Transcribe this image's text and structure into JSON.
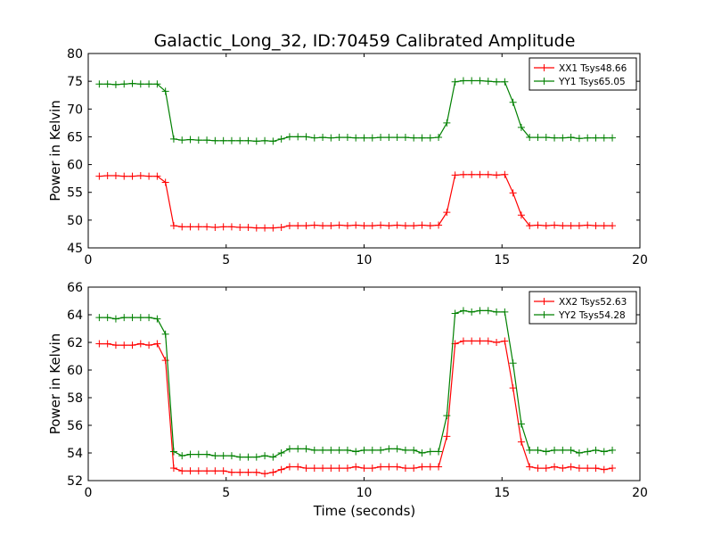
{
  "chart_data": [
    {
      "type": "line",
      "title": "Galactic_Long_32, ID:70459 Calibrated Amplitude",
      "xlabel": "",
      "ylabel": "Power in Kelvin",
      "xlim": [
        0,
        20
      ],
      "ylim": [
        45,
        80
      ],
      "xticks": [
        "0",
        "5",
        "10",
        "15",
        "20"
      ],
      "yticks": [
        "45",
        "50",
        "55",
        "60",
        "65",
        "70",
        "75",
        "80"
      ],
      "legend_position": "top-right",
      "grid": false,
      "x": [
        0.4,
        0.7,
        1.0,
        1.3,
        1.6,
        1.9,
        2.2,
        2.5,
        2.8,
        3.1,
        3.4,
        3.7,
        4.0,
        4.3,
        4.6,
        4.9,
        5.2,
        5.5,
        5.8,
        6.1,
        6.4,
        6.7,
        7.0,
        7.3,
        7.6,
        7.9,
        8.2,
        8.5,
        8.8,
        9.1,
        9.4,
        9.7,
        10.0,
        10.3,
        10.6,
        10.9,
        11.2,
        11.5,
        11.8,
        12.1,
        12.4,
        12.7,
        13.0,
        13.3,
        13.6,
        13.9,
        14.2,
        14.5,
        14.8,
        15.1,
        15.4,
        15.7,
        16.0,
        16.3,
        16.6,
        16.9,
        17.2,
        17.5,
        17.8,
        18.1,
        18.4,
        18.7,
        19.0
      ],
      "series": [
        {
          "name": "XX1 Tsys48.66",
          "color": "#ff0000",
          "values": [
            57.9,
            58.0,
            58.0,
            57.9,
            57.9,
            58.0,
            57.9,
            57.9,
            56.8,
            49.0,
            48.8,
            48.8,
            48.8,
            48.8,
            48.7,
            48.8,
            48.8,
            48.7,
            48.7,
            48.6,
            48.6,
            48.6,
            48.7,
            49.0,
            49.0,
            49.0,
            49.1,
            49.0,
            49.0,
            49.1,
            49.0,
            49.1,
            49.0,
            49.0,
            49.1,
            49.0,
            49.1,
            49.0,
            49.0,
            49.1,
            49.0,
            49.1,
            51.4,
            58.1,
            58.2,
            58.2,
            58.2,
            58.2,
            58.1,
            58.2,
            54.9,
            50.9,
            49.0,
            49.1,
            49.0,
            49.1,
            49.0,
            49.0,
            49.0,
            49.1,
            49.0,
            49.0,
            49.0
          ]
        },
        {
          "name": "YY1 Tsys65.05",
          "color": "#008000",
          "values": [
            74.5,
            74.5,
            74.4,
            74.5,
            74.6,
            74.5,
            74.5,
            74.5,
            73.2,
            64.6,
            64.4,
            64.5,
            64.4,
            64.4,
            64.3,
            64.3,
            64.3,
            64.3,
            64.3,
            64.2,
            64.3,
            64.2,
            64.6,
            65.0,
            65.0,
            65.0,
            64.8,
            64.9,
            64.8,
            64.9,
            64.9,
            64.8,
            64.8,
            64.8,
            64.9,
            64.9,
            64.9,
            64.9,
            64.8,
            64.8,
            64.8,
            64.9,
            67.5,
            74.9,
            75.1,
            75.1,
            75.1,
            75.0,
            74.9,
            74.9,
            71.2,
            66.7,
            64.9,
            64.9,
            64.9,
            64.8,
            64.8,
            64.9,
            64.7,
            64.8,
            64.8,
            64.8,
            64.8
          ]
        }
      ]
    },
    {
      "type": "line",
      "title": "",
      "xlabel": "Time (seconds)",
      "ylabel": "Power in Kelvin",
      "xlim": [
        0,
        20
      ],
      "ylim": [
        52,
        66
      ],
      "xticks": [
        "0",
        "5",
        "10",
        "15",
        "20"
      ],
      "yticks": [
        "52",
        "54",
        "56",
        "58",
        "60",
        "62",
        "64",
        "66"
      ],
      "legend_position": "top-right",
      "grid": false,
      "x": [
        0.4,
        0.7,
        1.0,
        1.3,
        1.6,
        1.9,
        2.2,
        2.5,
        2.8,
        3.1,
        3.4,
        3.7,
        4.0,
        4.3,
        4.6,
        4.9,
        5.2,
        5.5,
        5.8,
        6.1,
        6.4,
        6.7,
        7.0,
        7.3,
        7.6,
        7.9,
        8.2,
        8.5,
        8.8,
        9.1,
        9.4,
        9.7,
        10.0,
        10.3,
        10.6,
        10.9,
        11.2,
        11.5,
        11.8,
        12.1,
        12.4,
        12.7,
        13.0,
        13.3,
        13.6,
        13.9,
        14.2,
        14.5,
        14.8,
        15.1,
        15.4,
        15.7,
        16.0,
        16.3,
        16.6,
        16.9,
        17.2,
        17.5,
        17.8,
        18.1,
        18.4,
        18.7,
        19.0
      ],
      "series": [
        {
          "name": "XX2 Tsys52.63",
          "color": "#ff0000",
          "values": [
            61.9,
            61.9,
            61.8,
            61.8,
            61.8,
            61.9,
            61.8,
            61.9,
            60.7,
            52.9,
            52.7,
            52.7,
            52.7,
            52.7,
            52.7,
            52.7,
            52.6,
            52.6,
            52.6,
            52.6,
            52.5,
            52.6,
            52.8,
            53.0,
            53.0,
            52.9,
            52.9,
            52.9,
            52.9,
            52.9,
            52.9,
            53.0,
            52.9,
            52.9,
            53.0,
            53.0,
            53.0,
            52.9,
            52.9,
            53.0,
            53.0,
            53.0,
            55.2,
            61.9,
            62.1,
            62.1,
            62.1,
            62.1,
            62.0,
            62.1,
            58.7,
            54.8,
            53.0,
            52.9,
            52.9,
            53.0,
            52.9,
            53.0,
            52.9,
            52.9,
            52.9,
            52.8,
            52.9
          ]
        },
        {
          "name": "YY2 Tsys54.28",
          "color": "#008000",
          "values": [
            63.8,
            63.8,
            63.7,
            63.8,
            63.8,
            63.8,
            63.8,
            63.7,
            62.6,
            54.1,
            53.8,
            53.9,
            53.9,
            53.9,
            53.8,
            53.8,
            53.8,
            53.7,
            53.7,
            53.7,
            53.8,
            53.7,
            54.0,
            54.3,
            54.3,
            54.3,
            54.2,
            54.2,
            54.2,
            54.2,
            54.2,
            54.1,
            54.2,
            54.2,
            54.2,
            54.3,
            54.3,
            54.2,
            54.2,
            54.0,
            54.1,
            54.1,
            56.7,
            64.1,
            64.3,
            64.2,
            64.3,
            64.3,
            64.2,
            64.2,
            60.5,
            56.1,
            54.2,
            54.2,
            54.1,
            54.2,
            54.2,
            54.2,
            54.0,
            54.1,
            54.2,
            54.1,
            54.2
          ]
        }
      ]
    }
  ]
}
